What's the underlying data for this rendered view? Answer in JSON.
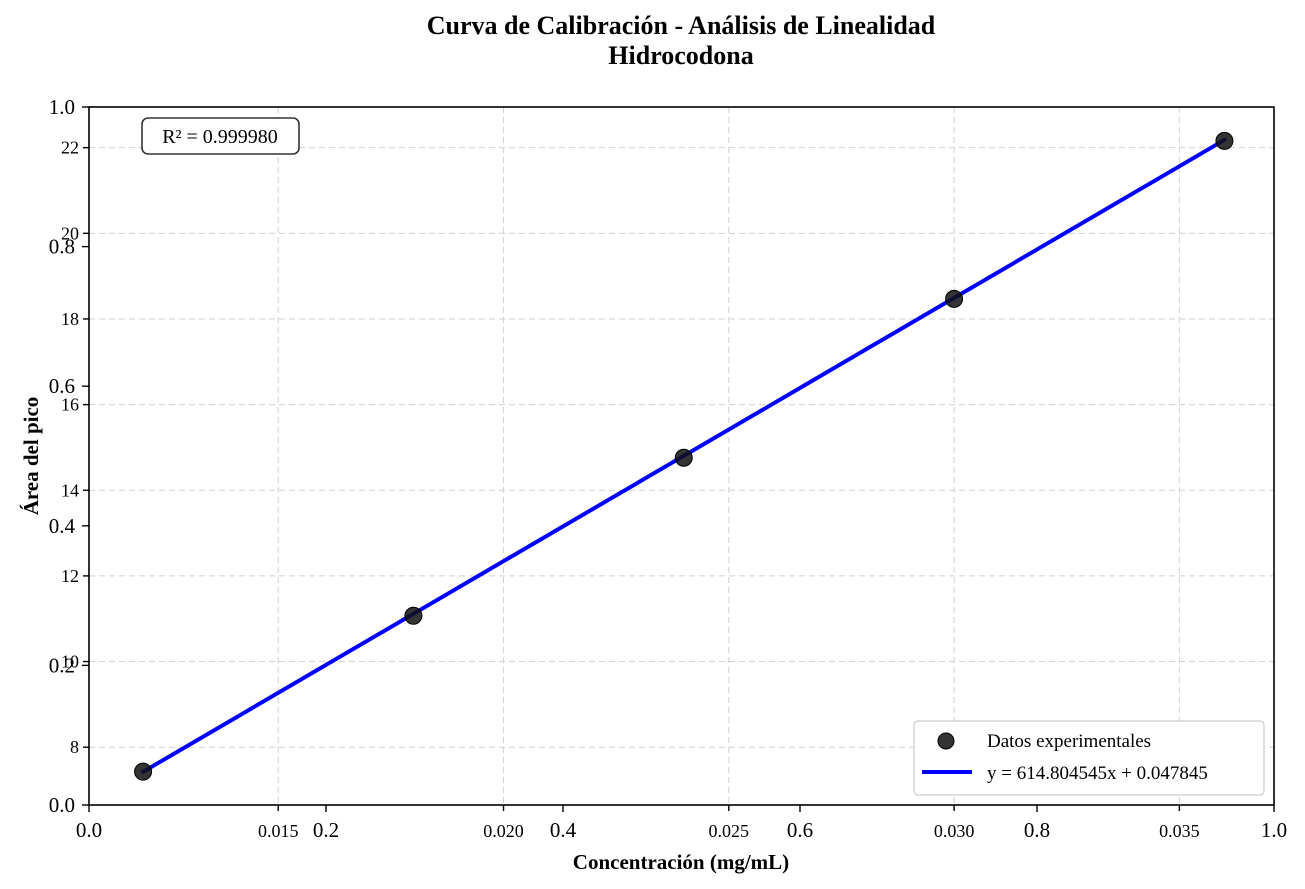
{
  "chart_data": {
    "type": "scatter",
    "title": "Curva de Calibración - Análisis de Linealidad",
    "subtitle": "Hidrocodona",
    "xlabel": "Concentración (mg/mL)",
    "ylabel": "Área del pico",
    "xlim": [
      0.0108,
      0.0371
    ],
    "ylim": [
      6.65,
      22.95
    ],
    "x_ticks": [
      "0.015",
      "0.020",
      "0.025",
      "0.030",
      "0.035"
    ],
    "y_ticks": [
      "8",
      "10",
      "12",
      "14",
      "16",
      "18",
      "20",
      "22"
    ],
    "overlay_axis_ticks": [
      "0.0",
      "0.2",
      "0.4",
      "0.6",
      "0.8",
      "1.0"
    ],
    "grid": true,
    "series": [
      {
        "name": "Datos experimentales",
        "kind": "scatter",
        "color": "#111111",
        "x": [
          0.012,
          0.018,
          0.024,
          0.03,
          0.036
        ],
        "y": [
          7.43,
          11.07,
          14.76,
          18.47,
          22.16
        ]
      },
      {
        "name": "y = 614.804545x + 0.047845",
        "kind": "line",
        "color": "#0000ff",
        "slope": 614.804545,
        "intercept": 0.047845,
        "x_range": [
          0.012,
          0.036
        ]
      }
    ],
    "annotation": "R² = 0.999980",
    "legend_position": "lower-right"
  }
}
